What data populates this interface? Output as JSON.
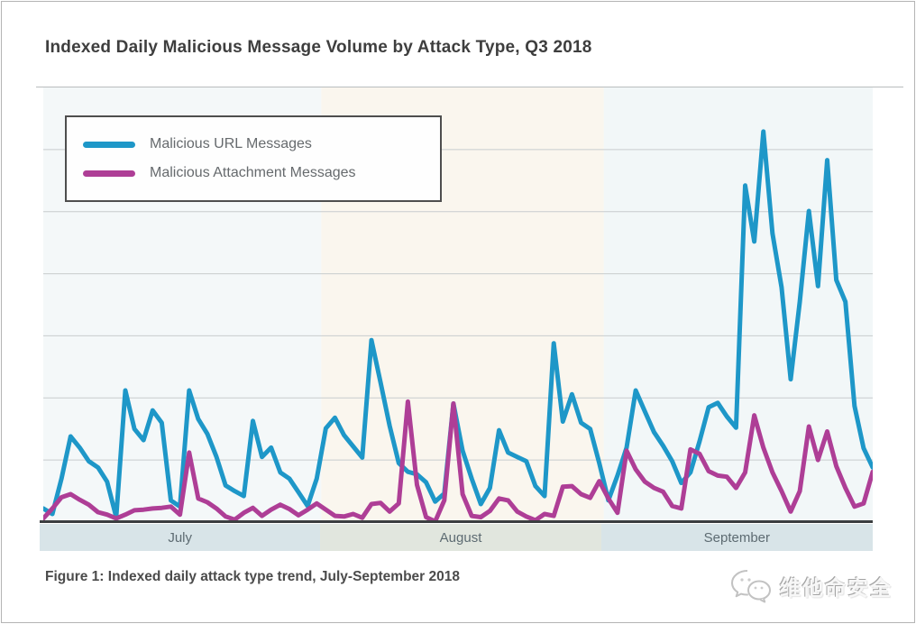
{
  "page": {
    "title": "Indexed Daily Malicious Message Volume by Attack Type, Q3 2018",
    "caption": "Figure 1: Indexed daily attack type trend, July-September 2018",
    "watermark_text": "维他命安全"
  },
  "colors": {
    "url_blue": "#1e97c8",
    "attachment_magenta": "#ae3e96",
    "gridline": "#c8cccd",
    "axis": "#3b3e40",
    "month_strip_default": "#d8e4e8",
    "month_strip_august": "#e1e6de"
  },
  "chart_data": {
    "type": "line",
    "title": "Indexed Daily Malicious Message Volume by Attack Type, Q3 2018",
    "xlabel": "",
    "ylabel": "",
    "x_description": "92 daily points, July 1 - September 30 2018",
    "y_tick_labels_visible": false,
    "ylim": [
      0,
      700
    ],
    "gridline_step": 100,
    "grid": true,
    "legend_position": "top-left inset box",
    "months": [
      {
        "label": "July",
        "days": 31,
        "plot_fill": "#f4f8f9",
        "strip_fill": "#d8e4e8"
      },
      {
        "label": "August",
        "days": 31,
        "plot_fill": "#faf6ee",
        "strip_fill": "#e1e6de"
      },
      {
        "label": "September",
        "days": 30,
        "plot_fill": "#f2f7f8",
        "strip_fill": "#d8e4e8"
      }
    ],
    "series": [
      {
        "name": "Malicious URL Messages",
        "color": "#1e97c8",
        "values": [
          22,
          13,
          70,
          138,
          120,
          98,
          88,
          65,
          8,
          212,
          150,
          132,
          180,
          160,
          35,
          25,
          212,
          166,
          142,
          105,
          59,
          50,
          42,
          163,
          105,
          120,
          80,
          70,
          48,
          26,
          70,
          151,
          168,
          140,
          122,
          104,
          293,
          225,
          155,
          95,
          81,
          77,
          64,
          33,
          46,
          191,
          115,
          70,
          29,
          55,
          148,
          112,
          105,
          98,
          58,
          42,
          288,
          162,
          206,
          160,
          150,
          95,
          35,
          75,
          120,
          212,
          178,
          145,
          123,
          98,
          63,
          80,
          130,
          185,
          192,
          170,
          152,
          542,
          452,
          629,
          465,
          378,
          230,
          355,
          501,
          380,
          583,
          390,
          355,
          187,
          119,
          88
        ]
      },
      {
        "name": "Malicious Attachment Messages",
        "color": "#ae3e96",
        "values": [
          6,
          22,
          40,
          45,
          36,
          28,
          16,
          12,
          6,
          12,
          19,
          20,
          22,
          23,
          25,
          12,
          112,
          38,
          32,
          22,
          9,
          4,
          15,
          23,
          10,
          20,
          28,
          21,
          11,
          20,
          30,
          20,
          10,
          9,
          13,
          7,
          29,
          31,
          17,
          30,
          194,
          60,
          8,
          1,
          35,
          191,
          45,
          10,
          8,
          18,
          38,
          35,
          17,
          9,
          3,
          13,
          10,
          57,
          58,
          45,
          39,
          66,
          38,
          15,
          115,
          85,
          65,
          55,
          49,
          26,
          22,
          117,
          110,
          82,
          75,
          73,
          55,
          80,
          172,
          120,
          80,
          50,
          17,
          50,
          154,
          100,
          146,
          90,
          55,
          25,
          30,
          81
        ]
      }
    ]
  }
}
